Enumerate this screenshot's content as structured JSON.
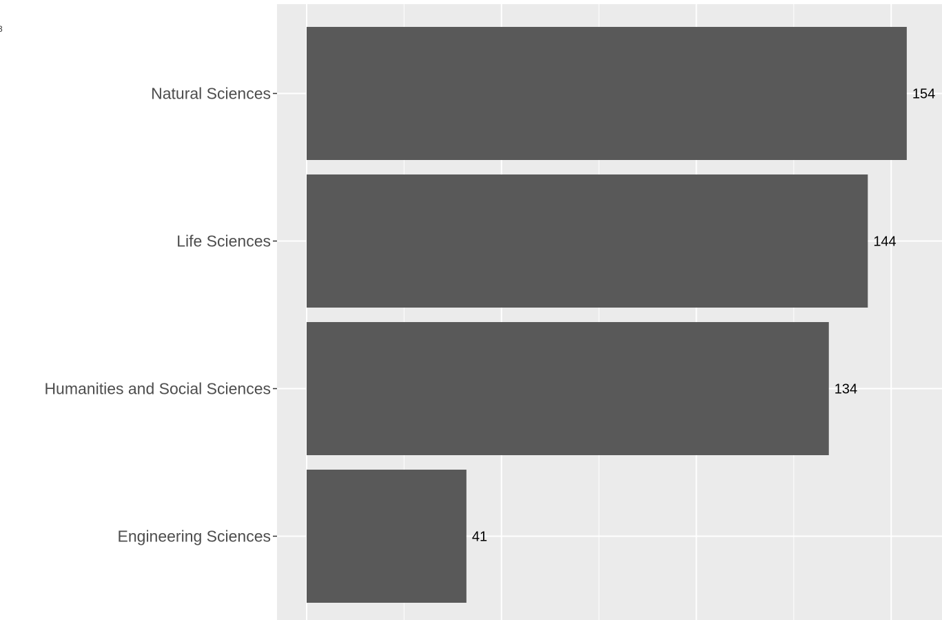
{
  "chart_data": {
    "type": "bar",
    "orientation": "horizontal",
    "categories": [
      "Natural Sciences",
      "Life Sciences",
      "Humanities and Social Sciences",
      "Engineering Sciences"
    ],
    "values": [
      154,
      144,
      134,
      41
    ],
    "value_labels": [
      "154",
      "144",
      "134",
      "41"
    ],
    "xlim": [
      0,
      162
    ],
    "grid": true,
    "legend": "none",
    "colors": {
      "bar": "#595959",
      "panel": "#ebebeb",
      "grid": "#ffffff",
      "background": "#ffffff"
    }
  },
  "edge_text": "3"
}
